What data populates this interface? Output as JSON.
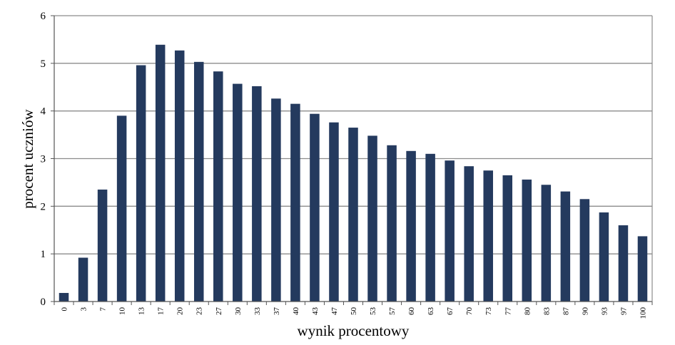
{
  "chart_data": {
    "type": "bar",
    "xlabel": "wynik procentowy",
    "ylabel": "procent uczniów",
    "ylim": [
      0,
      6
    ],
    "yticks": [
      0,
      1,
      2,
      3,
      4,
      5,
      6
    ],
    "grid": true,
    "legend": "none",
    "bar_color": "#243a5e",
    "grid_color": "#8c8c8c",
    "categories": [
      "0",
      "3",
      "7",
      "10",
      "13",
      "17",
      "20",
      "23",
      "27",
      "30",
      "33",
      "37",
      "40",
      "43",
      "47",
      "50",
      "53",
      "57",
      "60",
      "63",
      "67",
      "70",
      "73",
      "77",
      "80",
      "83",
      "87",
      "90",
      "93",
      "97",
      "100"
    ],
    "values": [
      0.18,
      0.92,
      2.35,
      3.9,
      4.96,
      5.39,
      5.27,
      5.03,
      4.83,
      4.57,
      4.52,
      4.26,
      4.15,
      3.94,
      3.76,
      3.65,
      3.48,
      3.28,
      3.16,
      3.1,
      2.96,
      2.84,
      2.75,
      2.65,
      2.56,
      2.45,
      2.31,
      2.15,
      1.87,
      1.6,
      1.37
    ]
  }
}
